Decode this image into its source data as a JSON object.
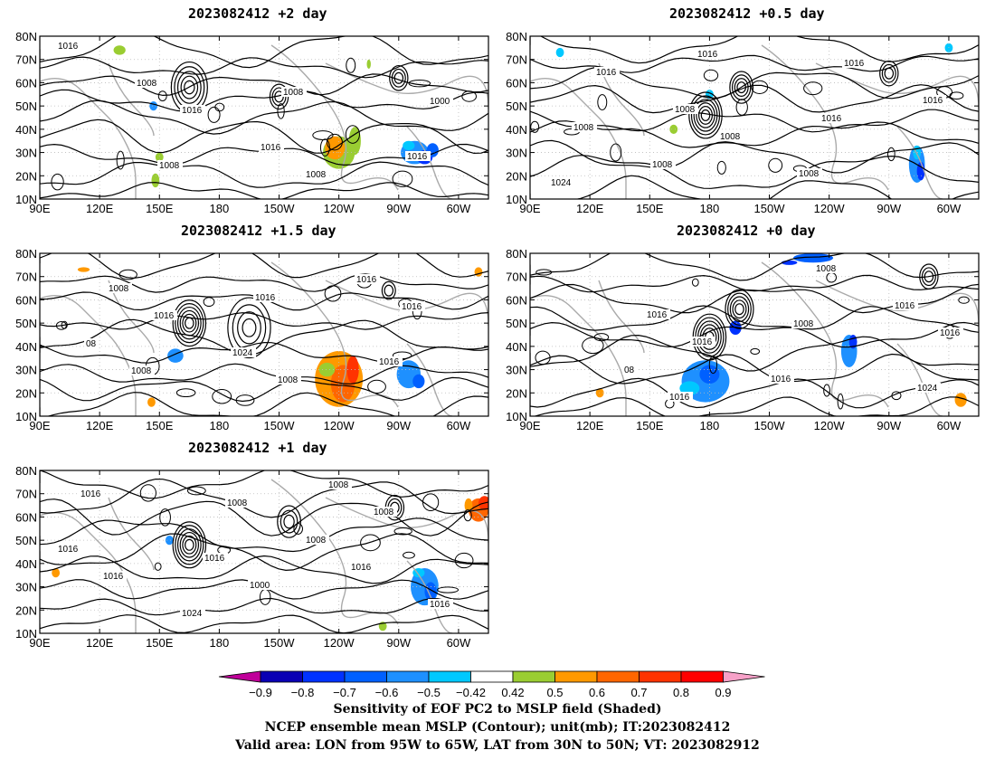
{
  "panels": [
    {
      "title": "2023082412  +2 day",
      "contour_labels": [
        "1016",
        "1016",
        "1008",
        "1000",
        "1008",
        "1008",
        "1016",
        "1008",
        "1016"
      ],
      "shading_summary": "positive (0.5–0.7) along 150W–120W 20N–40N; negative (−0.6 to −0.8) near 90W–70W 25N–35N"
    },
    {
      "title": "2023082412  +0.5 day",
      "contour_labels": [
        "1016",
        "1008",
        "1016",
        "1008",
        "1016",
        "1016",
        "1024",
        "1008",
        "1008",
        "1016",
        "1008"
      ],
      "shading_summary": "negative (−0.5 to −0.8) near 75W 15N–35N"
    },
    {
      "title": "2023082412  +1.5 day",
      "contour_labels": [
        "1016",
        "1008",
        "1016",
        "1008",
        "1016",
        "1016",
        "1008",
        "1024",
        "1016",
        "08"
      ],
      "shading_summary": "positive (0.5–0.8) near 150W–110W 15N–40N; negative near 90W–70W 20N–35N"
    },
    {
      "title": "2023082412  +0 day",
      "contour_labels": [
        "1016",
        "1008",
        "1016",
        "1016",
        "1008",
        "1024",
        "1016",
        "1016",
        "1016",
        "08"
      ],
      "shading_summary": "negative (−0.5 to −0.8) near 180–160W 15N–35N and 110W–100W 30N–45N"
    },
    {
      "title": "2023082412  +1 day",
      "contour_labels": [
        "1000",
        "1008",
        "1016",
        "1008",
        "1016",
        "1016",
        "1016",
        "1008",
        "1016",
        "1024",
        "1008",
        "1016"
      ],
      "shading_summary": "negative (−0.5 to −0.7) near 90W–75W 20N–40N; positive (0.6–0.7) near 50W 60N–70N"
    }
  ],
  "axes": {
    "x_ticks": [
      "90E",
      "120E",
      "150E",
      "180",
      "150W",
      "120W",
      "90W",
      "60W"
    ],
    "y_ticks": [
      "80N",
      "70N",
      "60N",
      "50N",
      "40N",
      "30N",
      "20N",
      "10N"
    ],
    "lon_range": [
      "90E",
      "45W"
    ],
    "lat_range": [
      "10N",
      "80N"
    ]
  },
  "colorbar": {
    "labels": [
      "-0.9",
      "-0.8",
      "-0.7",
      "-0.6",
      "-0.5",
      "-0.42",
      "0.42",
      "0.5",
      "0.6",
      "0.7",
      "0.8",
      "0.9"
    ],
    "colors": [
      "#0a00b4",
      "#0032ff",
      "#0060ff",
      "#1e90ff",
      "#00c8ff",
      "#ffffff",
      "#9acd32",
      "#ff9900",
      "#ff6600",
      "#ff3300",
      "#ff0000"
    ],
    "under_color": "#c0009a",
    "over_color": "#f7a1c8"
  },
  "caption": {
    "line1": "Sensitivity of EOF PC2 to MSLP field (Shaded)",
    "line2": "NCEP ensemble mean MSLP (Contour); unit(mb); IT:2023082412",
    "line3": "Valid area: LON from 95W to 65W, LAT from 30N to 50N; VT: 2023082912"
  }
}
